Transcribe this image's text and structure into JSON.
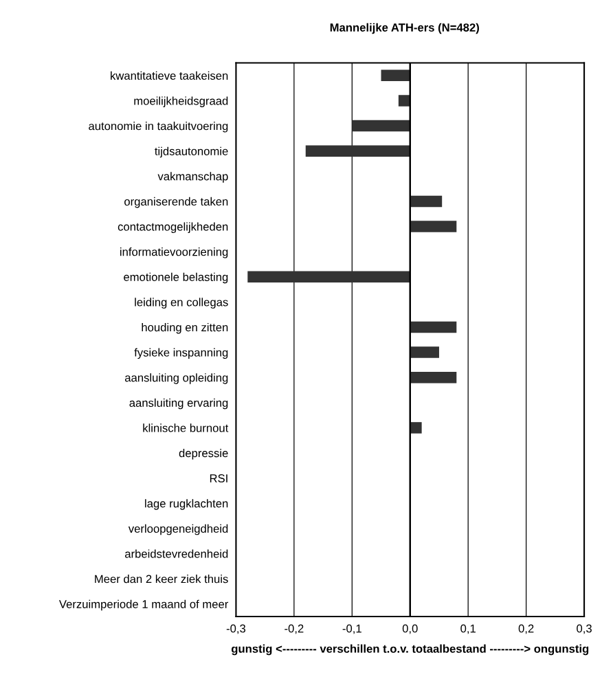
{
  "chart_data": {
    "type": "bar",
    "orientation": "horizontal",
    "title": "Mannelijke ATH-ers (N=482)",
    "xlabel": "gunstig <--------- verschillen t.o.v. totaalbestand ---------> ongunstig",
    "categories": [
      "kwantitatieve taakeisen",
      "moeilijkheidsgraad",
      "autonomie in taakuitvoering",
      "tijdsautonomie",
      "vakmanschap",
      "organiserende taken",
      "contactmogelijkheden",
      "informatievoorziening",
      "emotionele belasting",
      "leiding en collegas",
      "houding en zitten",
      "fysieke inspanning",
      "aansluiting opleiding",
      "aansluiting ervaring",
      "klinische burnout",
      "depressie",
      "RSI",
      "lage rugklachten",
      "verloopgeneigdheid",
      "arbeidstevredenheid",
      "Meer dan 2 keer ziek thuis",
      "Verzuimperiode 1 maand of meer"
    ],
    "values": [
      -0.05,
      -0.02,
      -0.1,
      -0.18,
      null,
      0.055,
      0.08,
      null,
      -0.28,
      null,
      0.08,
      0.05,
      0.08,
      null,
      0.02,
      null,
      null,
      null,
      null,
      null,
      null,
      null
    ],
    "color": "#333333",
    "xlim": [
      -0.3,
      0.3
    ],
    "xticks": [
      {
        "value": -0.3,
        "label": "-0,3"
      },
      {
        "value": -0.2,
        "label": "-0,2"
      },
      {
        "value": -0.1,
        "label": "-0,1"
      },
      {
        "value": 0,
        "label": "0,0"
      },
      {
        "value": 0.1,
        "label": "0,1"
      },
      {
        "value": 0.2,
        "label": "0,2"
      },
      {
        "value": 0.3,
        "label": "0,3"
      }
    ],
    "grid": "x"
  }
}
